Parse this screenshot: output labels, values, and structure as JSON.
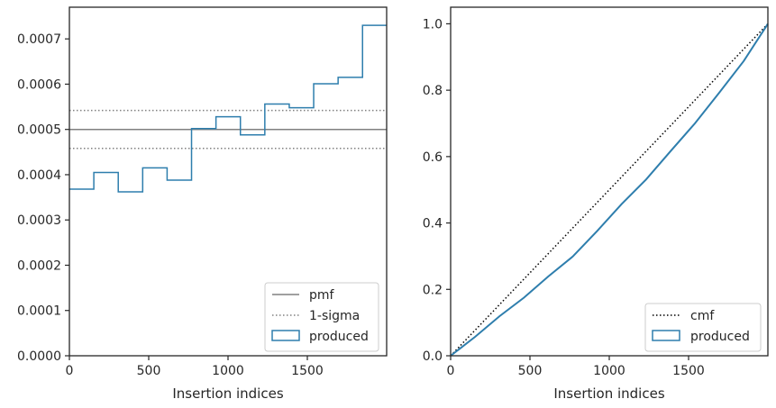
{
  "colors": {
    "series": "#2e7ead",
    "pmf": "#808080",
    "sigma": "#808080",
    "cmf": "#000000",
    "frame": "#262626"
  },
  "chart_data": [
    {
      "type": "step",
      "xlabel": "Insertion indices",
      "ylabel": "",
      "xlim": [
        0,
        2000
      ],
      "ylim": [
        0,
        0.00077
      ],
      "xticks": [
        0,
        500,
        1000,
        1500
      ],
      "xtick_labels": [
        "0",
        "500",
        "1000",
        "1500"
      ],
      "yticks": [
        0,
        0.0001,
        0.0002,
        0.0003,
        0.0004,
        0.0005,
        0.0006,
        0.0007
      ],
      "ytick_labels": [
        "0.0000",
        "0.0001",
        "0.0002",
        "0.0003",
        "0.0004",
        "0.0005",
        "0.0006",
        "0.0007"
      ],
      "bin_edges": [
        0,
        154,
        308,
        462,
        616,
        770,
        924,
        1078,
        1232,
        1386,
        1540,
        1694,
        1848,
        2000
      ],
      "values": [
        0.000368,
        0.000405,
        0.000362,
        0.000415,
        0.000388,
        0.000502,
        0.000528,
        0.000488,
        0.000556,
        0.000548,
        0.000601,
        0.000615,
        0.00073
      ],
      "pmf": 0.0005,
      "sigma": [
        0.000458,
        0.000542
      ],
      "grid": false,
      "legend_position": "lower-right",
      "legend": [
        "pmf",
        "1-sigma",
        "produced"
      ]
    },
    {
      "type": "line",
      "xlabel": "Insertion indices",
      "ylabel": "",
      "xlim": [
        0,
        2000
      ],
      "ylim": [
        0,
        1.05
      ],
      "xticks": [
        0,
        500,
        1000,
        1500
      ],
      "xtick_labels": [
        "0",
        "500",
        "1000",
        "1500"
      ],
      "yticks": [
        0,
        0.2,
        0.4,
        0.6,
        0.8,
        1.0
      ],
      "ytick_labels": [
        "0.0",
        "0.2",
        "0.4",
        "0.6",
        "0.8",
        "1.0"
      ],
      "x": [
        0,
        154,
        308,
        462,
        616,
        770,
        924,
        1078,
        1232,
        1386,
        1540,
        1694,
        1848,
        2000
      ],
      "produced": [
        0,
        0.057,
        0.119,
        0.175,
        0.239,
        0.299,
        0.376,
        0.457,
        0.531,
        0.616,
        0.7,
        0.793,
        0.888,
        1.0
      ],
      "cmf": [
        [
          0,
          0
        ],
        [
          2000,
          1.0
        ]
      ],
      "grid": false,
      "legend_position": "lower-right",
      "legend": [
        "cmf",
        "produced"
      ]
    }
  ]
}
